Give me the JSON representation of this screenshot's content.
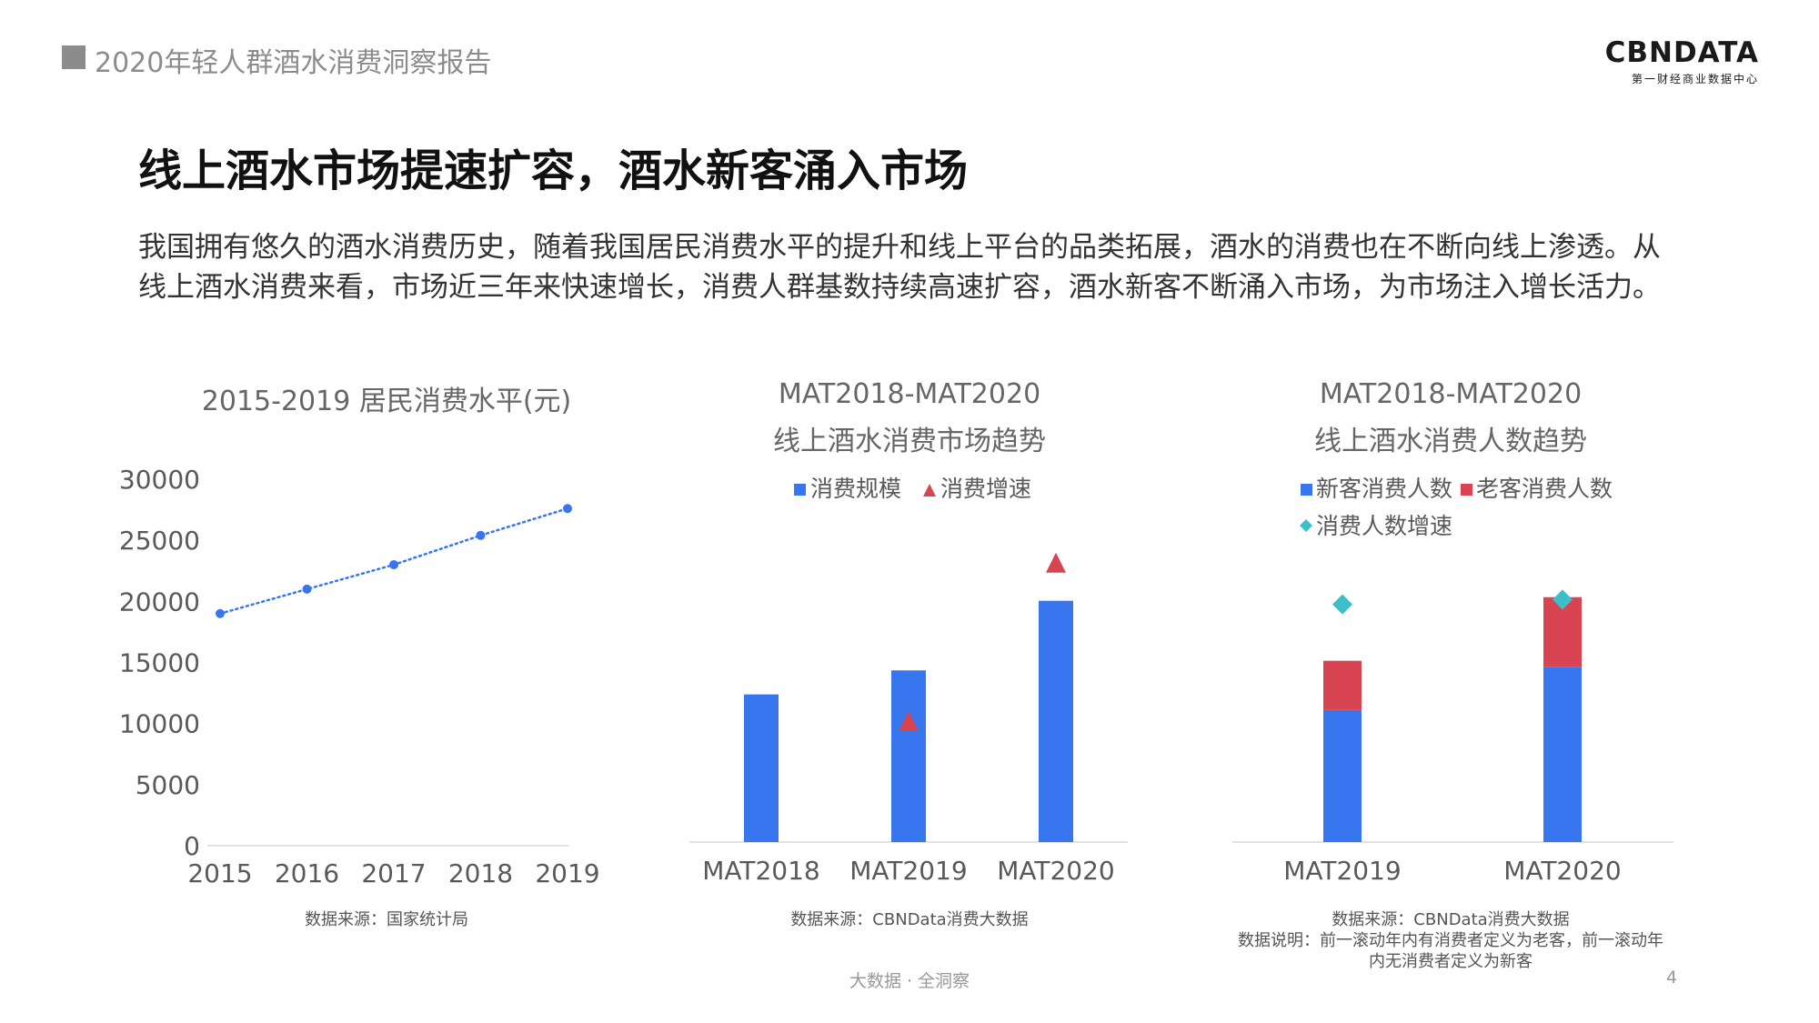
{
  "header": {
    "report_title": "2020年轻人群酒水消费洞察报告",
    "logo_text": "CBNDATA",
    "logo_subtext": "第一财经商业数据中心"
  },
  "headline": "线上酒水市场提速扩容，酒水新客涌入市场",
  "body_text": "我国拥有悠久的酒水消费历史，随着我国居民消费水平的提升和线上平台的品类拓展，酒水的消费也在不断向线上渗透。从线上酒水消费来看，市场近三年来快速增长，消费人群基数持续高速扩容，酒水新客不断涌入市场，为市场注入增长活力。",
  "colors": {
    "blue": "#3876f0",
    "red": "#d94452",
    "teal": "#3cbfc9",
    "gray_square": "#8c8c8c"
  },
  "chart_data": [
    {
      "type": "line",
      "title": "2015-2019 居民消费水平(元)",
      "x": [
        "2015",
        "2016",
        "2017",
        "2018",
        "2019"
      ],
      "series": [
        {
          "values": [
            19000,
            21000,
            23000,
            25400,
            27600
          ],
          "color": "#3876f0",
          "style": "dotted"
        }
      ],
      "ylim": [
        0,
        30000
      ],
      "yticks": [
        "0",
        "5000",
        "10000",
        "15000",
        "20000",
        "25000",
        "30000"
      ],
      "grid": false,
      "source": "数据来源：国家统计局"
    },
    {
      "type": "bar",
      "title": "MAT2018-MAT2020",
      "subtitle": "线上酒水消费市场趋势",
      "categories": [
        "MAT2018",
        "MAT2019",
        "MAT2020"
      ],
      "series": [
        {
          "name": "消费规模",
          "type": "bar",
          "values": [
            12.3,
            14.3,
            20.1
          ],
          "color": "#3876f0"
        },
        {
          "name": "消费增速",
          "type": "marker-triangle",
          "values": [
            null,
            10.0,
            23.2
          ],
          "color": "#d94452"
        }
      ],
      "ylim": [
        0,
        30
      ],
      "axis_labels_shown": false,
      "legend": "top",
      "source": "数据来源：CBNData消费大数据"
    },
    {
      "type": "bar",
      "stacked": true,
      "title": "MAT2018-MAT2020",
      "subtitle": "线上酒水消费人数趋势",
      "categories": [
        "MAT2019",
        "MAT2020"
      ],
      "series": [
        {
          "name": "新客消费人数",
          "type": "bar",
          "values": [
            11.0,
            14.6
          ],
          "color": "#3876f0"
        },
        {
          "name": "老客消费人数",
          "type": "bar",
          "values": [
            4.1,
            5.8
          ],
          "color": "#d94452"
        },
        {
          "name": "消费人数增速",
          "type": "marker-diamond",
          "values": [
            19.8,
            20.2
          ],
          "color": "#3cbfc9"
        }
      ],
      "ylim": [
        0,
        30
      ],
      "axis_labels_shown": false,
      "legend": "top",
      "source": "数据来源：CBNData消费大数据",
      "note_line1": "数据说明：前一滚动年内有消费者定义为老客，前一滚动年",
      "note_line2": "内无消费者定义为新客"
    }
  ],
  "footer": {
    "tag": "大数据 · 全洞察",
    "page_number": "4"
  }
}
